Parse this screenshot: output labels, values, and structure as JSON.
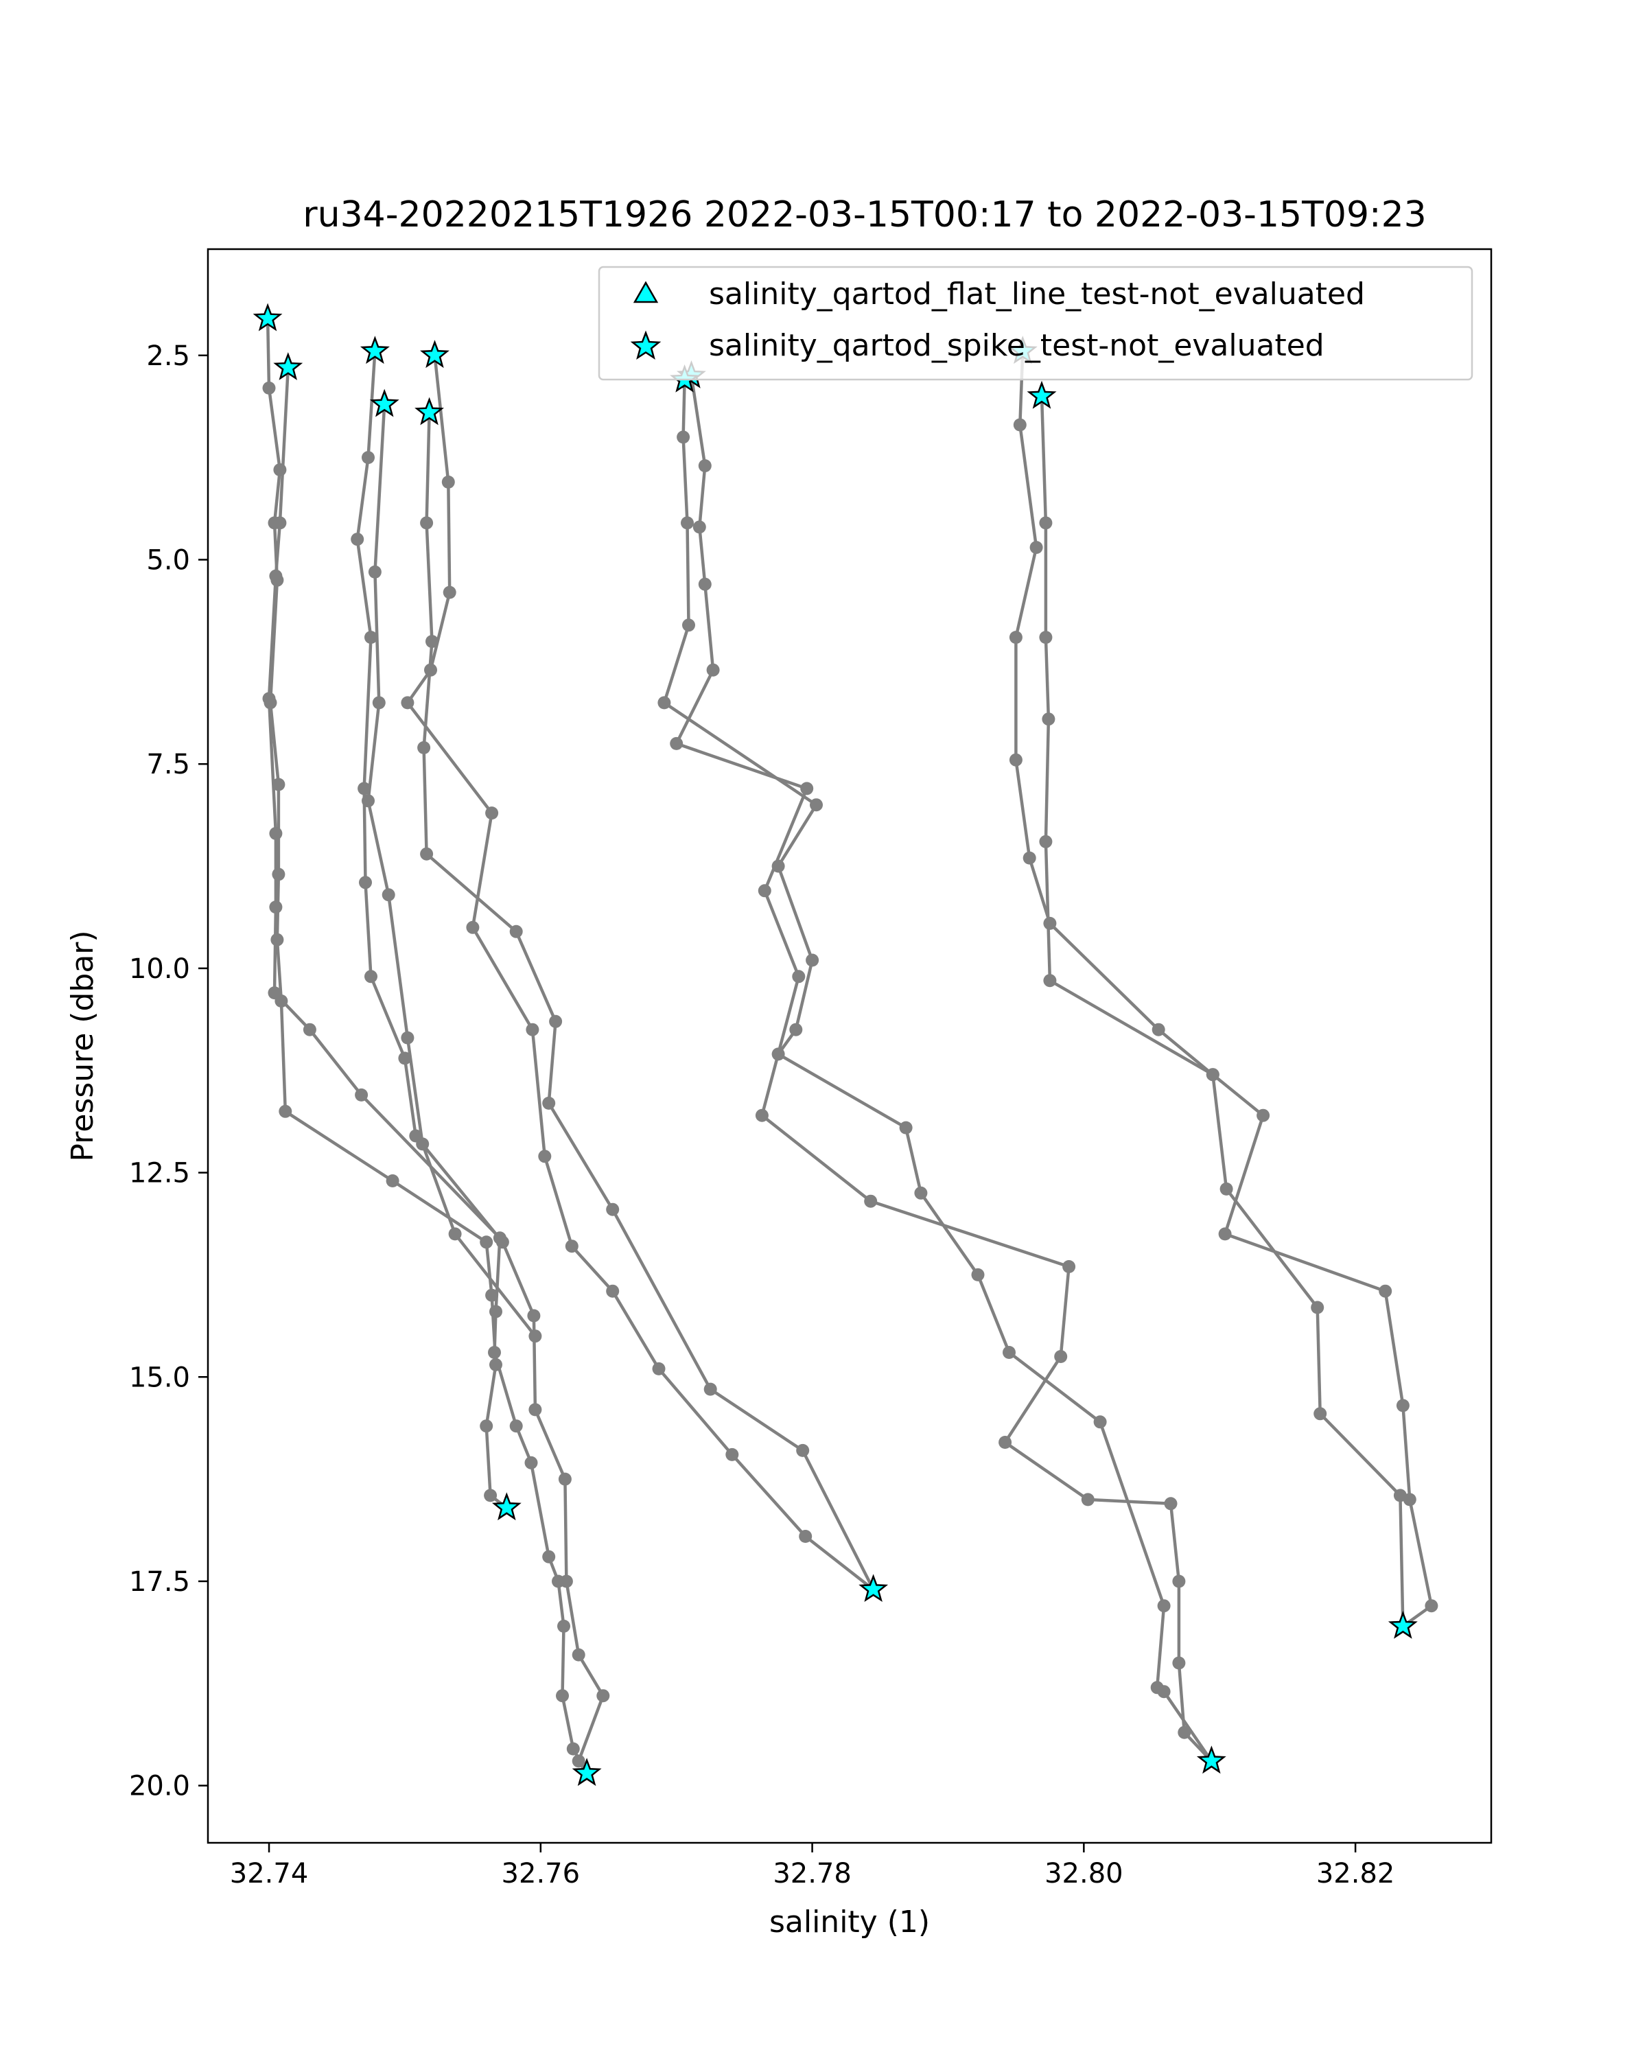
{
  "chart_data": {
    "type": "line",
    "title": "ru34-20220215T1926 2022-03-15T00:17 to 2022-03-15T09:23",
    "xlabel": "salinity (1)",
    "ylabel": "Pressure (dbar)",
    "xlim": [
      32.7355,
      32.83
    ],
    "ylim": [
      20.7,
      1.2
    ],
    "y_inverted": true,
    "xticks": [
      "32.74",
      "32.76",
      "32.78",
      "32.80",
      "32.82"
    ],
    "xtick_values": [
      32.74,
      32.76,
      32.78,
      32.8,
      32.82
    ],
    "yticks": [
      "2.5",
      "5.0",
      "7.5",
      "10.0",
      "12.5",
      "15.0",
      "17.5",
      "20.0"
    ],
    "ytick_values": [
      2.5,
      5.0,
      7.5,
      10.0,
      12.5,
      15.0,
      17.5,
      20.0
    ],
    "grid": false,
    "legend_position": "top-right",
    "line_color": "#808080",
    "marker_color": "#808080",
    "flag_color": "#00ffff",
    "legend": [
      {
        "label": "salinity_qartod_flat_line_test-not_evaluated",
        "marker": "triangle"
      },
      {
        "label": "salinity_qartod_spike_test-not_evaluated",
        "marker": "star"
      }
    ],
    "series": [
      {
        "points": [
          [
            32.7399,
            2.05
          ],
          [
            32.74,
            2.9
          ],
          [
            32.7408,
            3.9
          ],
          [
            32.7404,
            4.55
          ],
          [
            32.7406,
            5.25
          ],
          [
            32.7401,
            6.75
          ],
          [
            32.7407,
            7.75
          ],
          [
            32.7407,
            8.85
          ],
          [
            32.7406,
            9.65
          ],
          [
            32.7409,
            10.4
          ],
          [
            32.7412,
            11.75
          ],
          [
            32.7491,
            12.6
          ],
          [
            32.756,
            13.35
          ],
          [
            32.7564,
            14.0
          ],
          [
            32.7567,
            14.85
          ],
          [
            32.756,
            15.6
          ],
          [
            32.7563,
            16.45
          ],
          [
            32.7575,
            16.6
          ]
        ]
      },
      {
        "points": [
          [
            32.7414,
            2.65
          ],
          [
            32.7408,
            4.55
          ],
          [
            32.7405,
            5.2
          ],
          [
            32.74,
            6.7
          ],
          [
            32.7405,
            8.35
          ],
          [
            32.7405,
            9.25
          ],
          [
            32.7404,
            10.3
          ],
          [
            32.743,
            10.75
          ],
          [
            32.7468,
            11.55
          ],
          [
            32.757,
            13.3
          ],
          [
            32.7567,
            14.2
          ],
          [
            32.7566,
            14.7
          ],
          [
            32.7582,
            15.6
          ],
          [
            32.7593,
            16.05
          ],
          [
            32.7606,
            17.2
          ],
          [
            32.7613,
            17.5
          ],
          [
            32.7617,
            18.05
          ],
          [
            32.7616,
            18.9
          ],
          [
            32.7624,
            19.55
          ],
          [
            32.7634,
            19.85
          ]
        ]
      },
      {
        "points": [
          [
            32.7478,
            2.45
          ],
          [
            32.7473,
            3.75
          ],
          [
            32.7465,
            4.75
          ],
          [
            32.7475,
            5.95
          ],
          [
            32.747,
            7.8
          ],
          [
            32.7471,
            8.95
          ],
          [
            32.7475,
            10.1
          ],
          [
            32.75,
            11.1
          ],
          [
            32.7508,
            12.05
          ],
          [
            32.7572,
            13.35
          ],
          [
            32.7595,
            14.25
          ],
          [
            32.7596,
            15.4
          ],
          [
            32.7618,
            16.25
          ],
          [
            32.7619,
            17.5
          ],
          [
            32.7628,
            18.4
          ],
          [
            32.7646,
            18.9
          ],
          [
            32.7628,
            19.7
          ],
          [
            32.7634,
            19.85
          ]
        ]
      },
      {
        "points": [
          [
            32.7485,
            3.1
          ],
          [
            32.7478,
            5.15
          ],
          [
            32.7481,
            6.75
          ],
          [
            32.7473,
            7.95
          ],
          [
            32.7488,
            9.1
          ],
          [
            32.7502,
            10.85
          ],
          [
            32.7513,
            12.15
          ],
          [
            32.7537,
            13.25
          ],
          [
            32.7596,
            14.5
          ]
        ]
      },
      {
        "points": [
          [
            32.7522,
            2.5
          ],
          [
            32.7532,
            4.05
          ],
          [
            32.7533,
            5.4
          ],
          [
            32.7519,
            6.35
          ],
          [
            32.7502,
            6.75
          ],
          [
            32.7564,
            8.1
          ],
          [
            32.755,
            9.5
          ],
          [
            32.7594,
            10.75
          ],
          [
            32.7603,
            12.3
          ],
          [
            32.7623,
            13.4
          ],
          [
            32.7653,
            13.95
          ],
          [
            32.7687,
            14.9
          ],
          [
            32.7741,
            15.95
          ],
          [
            32.7795,
            16.95
          ],
          [
            32.7845,
            17.6
          ]
        ]
      },
      {
        "points": [
          [
            32.7518,
            3.2
          ],
          [
            32.7516,
            4.55
          ],
          [
            32.752,
            6.0
          ],
          [
            32.7514,
            7.3
          ],
          [
            32.7516,
            8.6
          ],
          [
            32.7582,
            9.55
          ],
          [
            32.7611,
            10.65
          ],
          [
            32.7606,
            11.65
          ],
          [
            32.7653,
            12.95
          ],
          [
            32.7725,
            15.15
          ],
          [
            32.7793,
            15.9
          ],
          [
            32.7845,
            17.6
          ]
        ]
      },
      {
        "points": [
          [
            32.7711,
            2.75
          ],
          [
            32.7721,
            3.85
          ],
          [
            32.7717,
            4.6
          ],
          [
            32.7721,
            5.3
          ],
          [
            32.7727,
            6.35
          ],
          [
            32.77,
            7.25
          ],
          [
            32.7796,
            7.8
          ],
          [
            32.7765,
            9.05
          ],
          [
            32.779,
            10.1
          ],
          [
            32.7763,
            11.8
          ],
          [
            32.7843,
            12.85
          ],
          [
            32.7989,
            13.65
          ],
          [
            32.7983,
            14.75
          ],
          [
            32.7942,
            15.8
          ],
          [
            32.8003,
            16.5
          ],
          [
            32.8064,
            16.55
          ],
          [
            32.807,
            17.5
          ],
          [
            32.807,
            18.5
          ],
          [
            32.8074,
            19.35
          ],
          [
            32.8094,
            19.7
          ]
        ]
      },
      {
        "points": [
          [
            32.7706,
            2.8
          ],
          [
            32.7705,
            3.5
          ],
          [
            32.7708,
            4.55
          ],
          [
            32.7709,
            5.8
          ],
          [
            32.7691,
            6.75
          ],
          [
            32.7803,
            8.0
          ],
          [
            32.7775,
            8.75
          ],
          [
            32.78,
            9.9
          ],
          [
            32.7788,
            10.75
          ],
          [
            32.7775,
            11.05
          ],
          [
            32.7869,
            11.95
          ],
          [
            32.788,
            12.75
          ],
          [
            32.7922,
            13.75
          ],
          [
            32.7945,
            14.7
          ],
          [
            32.8012,
            15.55
          ],
          [
            32.8059,
            17.8
          ],
          [
            32.8054,
            18.8
          ],
          [
            32.8059,
            18.85
          ],
          [
            32.8094,
            19.7
          ]
        ]
      },
      {
        "points": [
          [
            32.7955,
            2.45
          ],
          [
            32.7953,
            3.35
          ],
          [
            32.7965,
            4.85
          ],
          [
            32.795,
            5.95
          ],
          [
            32.795,
            7.45
          ],
          [
            32.796,
            8.65
          ],
          [
            32.7975,
            9.45
          ],
          [
            32.8055,
            10.75
          ],
          [
            32.8095,
            11.3
          ],
          [
            32.8105,
            12.7
          ],
          [
            32.8172,
            14.15
          ],
          [
            32.8174,
            15.45
          ],
          [
            32.8233,
            16.45
          ],
          [
            32.8235,
            18.05
          ]
        ]
      },
      {
        "points": [
          [
            32.7969,
            3.0
          ],
          [
            32.7972,
            4.55
          ],
          [
            32.7972,
            5.95
          ],
          [
            32.7974,
            6.95
          ],
          [
            32.7972,
            8.45
          ],
          [
            32.7975,
            10.15
          ],
          [
            32.8095,
            11.3
          ],
          [
            32.8132,
            11.8
          ],
          [
            32.8104,
            13.25
          ],
          [
            32.8222,
            13.95
          ],
          [
            32.8235,
            15.35
          ],
          [
            32.824,
            16.5
          ],
          [
            32.8256,
            17.8
          ],
          [
            32.8235,
            18.05
          ]
        ]
      }
    ],
    "flag_points": [
      [
        32.7399,
        2.05
      ],
      [
        32.7414,
        2.65
      ],
      [
        32.7478,
        2.45
      ],
      [
        32.7485,
        3.1
      ],
      [
        32.7522,
        2.5
      ],
      [
        32.7518,
        3.2
      ],
      [
        32.7711,
        2.75
      ],
      [
        32.7706,
        2.8
      ],
      [
        32.7955,
        2.45
      ],
      [
        32.7969,
        3.0
      ],
      [
        32.7575,
        16.6
      ],
      [
        32.7634,
        19.85
      ],
      [
        32.7845,
        17.6
      ],
      [
        32.8094,
        19.7
      ],
      [
        32.8235,
        18.05
      ]
    ]
  }
}
